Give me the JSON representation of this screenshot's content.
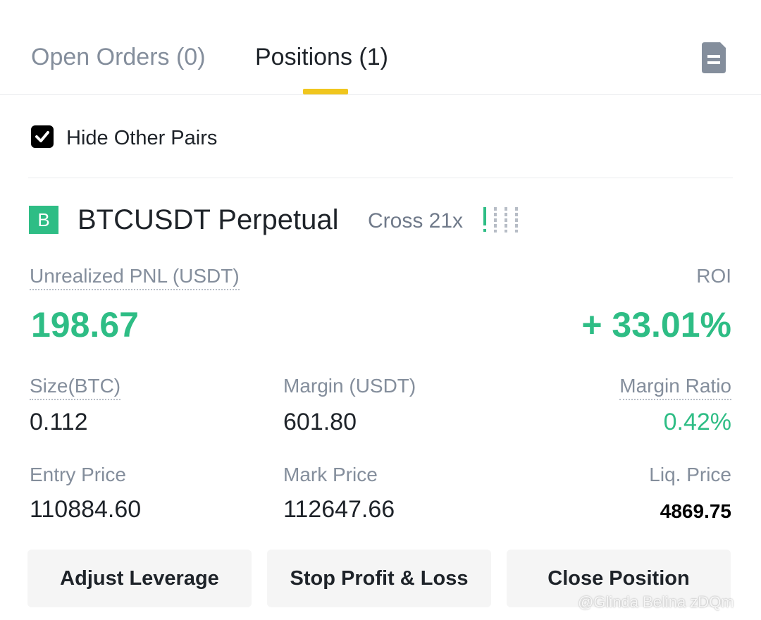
{
  "tabs": [
    "Open Orders (0)",
    "Positions (1)"
  ],
  "filter": {
    "label": "Hide Other Pairs",
    "checked": true
  },
  "position": {
    "side": "B",
    "symbol": "BTCUSDT Perpetual",
    "margin_mode": "Cross 21x",
    "pnl_label": "Unrealized PNL (USDT)",
    "pnl": "198.67",
    "roi_label": "ROI",
    "roi": "+ 33.01%",
    "fields": [
      {
        "label": "Size(BTC)",
        "value": "0.112"
      },
      {
        "label": "Margin (USDT)",
        "value": "601.80"
      },
      {
        "label": "Margin Ratio",
        "value": "0.42%"
      },
      {
        "label": "Entry Price",
        "value": "110884.60"
      },
      {
        "label": "Mark Price",
        "value": "112647.66"
      },
      {
        "label": "Liq. Price",
        "value": "4869.75"
      }
    ]
  },
  "buttons": [
    "Adjust Leverage",
    "Stop Profit & Loss",
    "Close Position"
  ],
  "watermark": "@Glinda Belina zDQm"
}
